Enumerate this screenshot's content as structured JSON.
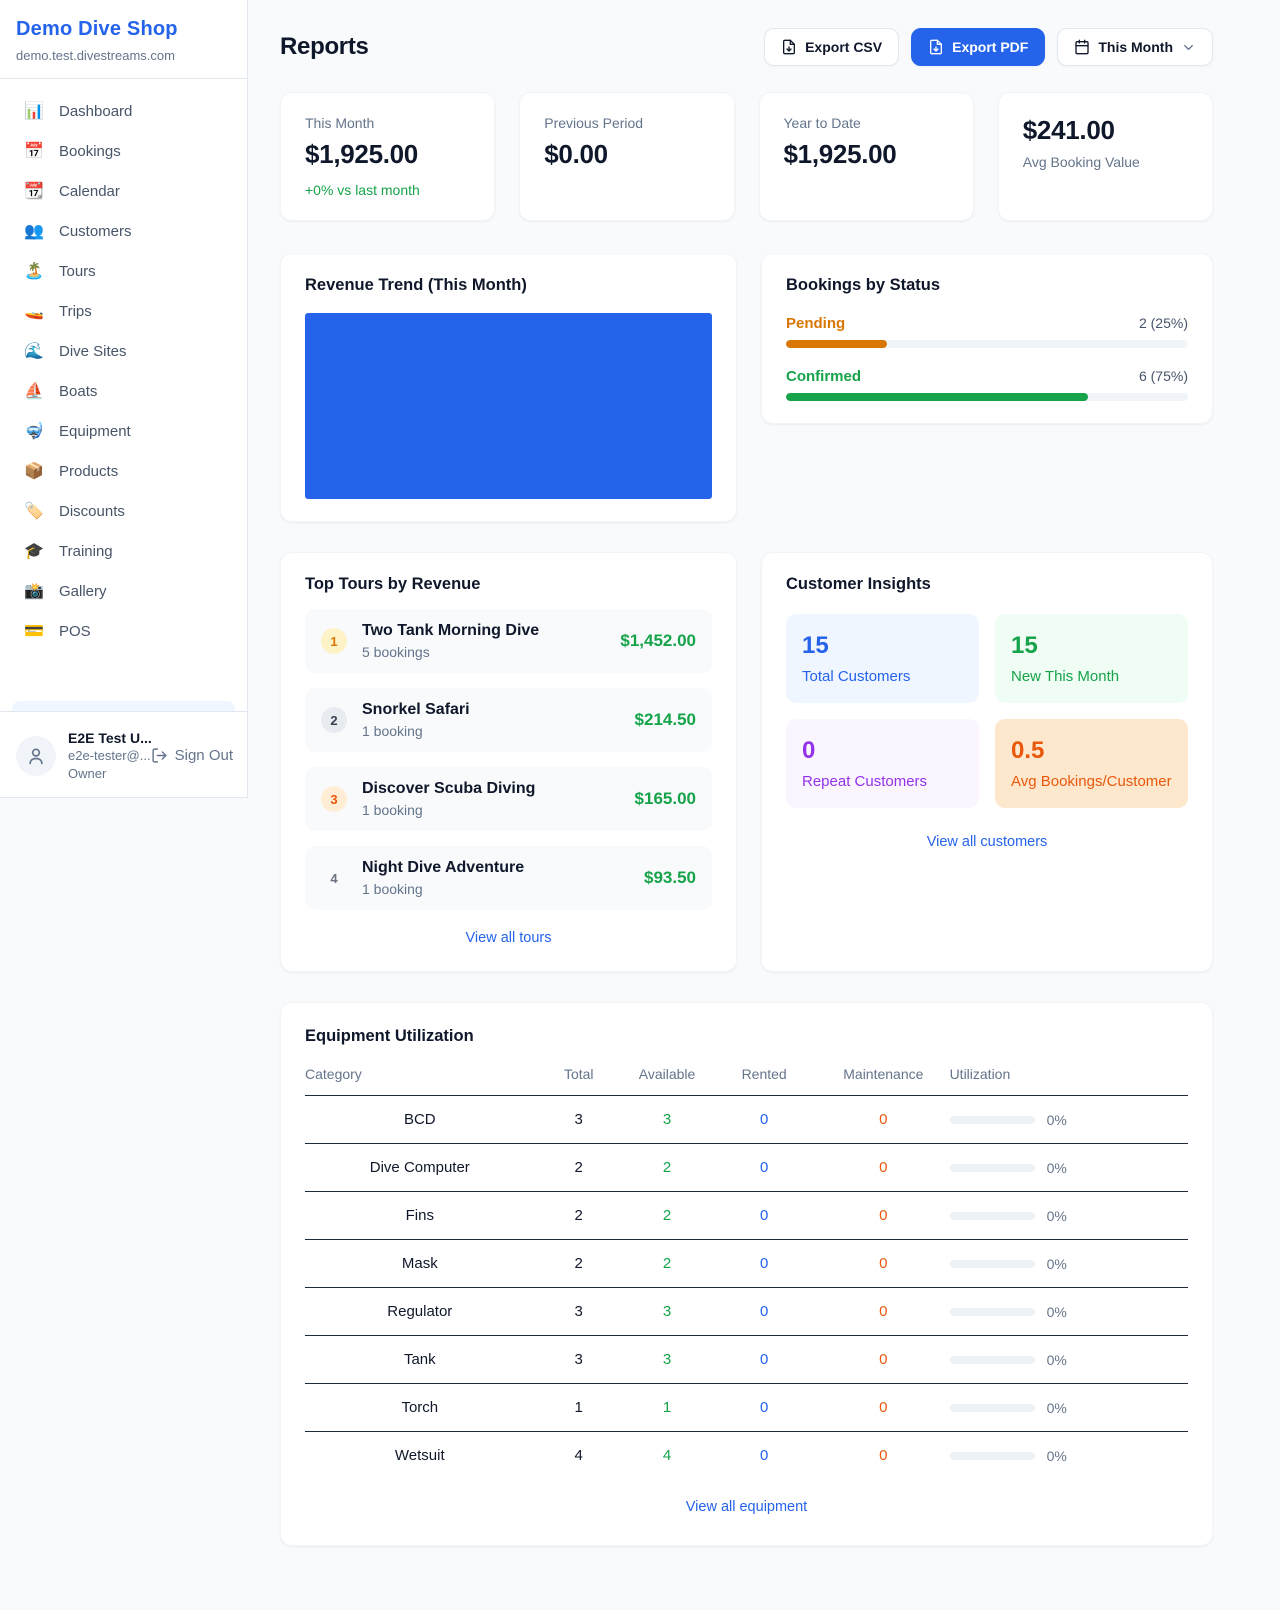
{
  "colors": {
    "accent": "#2563eb",
    "success": "#16a34a",
    "pending_orange": "#d97706",
    "maintenance_orange": "#ea580c",
    "repeat_purple": "#9333ea"
  },
  "sidebar": {
    "title": "Demo Dive Shop",
    "subdomain": "demo.test.divestreams.com",
    "nav": [
      {
        "icon": "📊",
        "label": "Dashboard"
      },
      {
        "icon": "📅",
        "label": "Bookings"
      },
      {
        "icon": "📆",
        "label": "Calendar"
      },
      {
        "icon": "👥",
        "label": "Customers"
      },
      {
        "icon": "🏝️",
        "label": "Tours"
      },
      {
        "icon": "🚤",
        "label": "Trips"
      },
      {
        "icon": "🌊",
        "label": "Dive Sites"
      },
      {
        "icon": "⛵",
        "label": "Boats"
      },
      {
        "icon": "🤿",
        "label": "Equipment"
      },
      {
        "icon": "📦",
        "label": "Products"
      },
      {
        "icon": "🏷️",
        "label": "Discounts"
      },
      {
        "icon": "🎓",
        "label": "Training"
      },
      {
        "icon": "📸",
        "label": "Gallery"
      },
      {
        "icon": "💳",
        "label": "POS"
      }
    ],
    "user": {
      "name": "E2E Test U...",
      "email": "e2e-tester@...",
      "role": "Owner",
      "sign_out": "Sign Out"
    }
  },
  "header": {
    "title": "Reports",
    "export_csv": "Export CSV",
    "export_pdf": "Export PDF",
    "period": "This Month"
  },
  "stats": [
    {
      "label": "This Month",
      "value": "$1,925.00",
      "delta": "+0% vs last month"
    },
    {
      "label": "Previous Period",
      "value": "$0.00"
    },
    {
      "label": "Year to Date",
      "value": "$1,925.00"
    },
    {
      "label": "Avg Booking Value",
      "value": "$241.00"
    }
  ],
  "revenue_trend": {
    "title": "Revenue Trend (This Month)"
  },
  "bookings_by_status": {
    "title": "Bookings by Status",
    "rows": [
      {
        "label": "Pending",
        "count": "2 (25%)",
        "pct": 25
      },
      {
        "label": "Confirmed",
        "count": "6 (75%)",
        "pct": 75
      }
    ]
  },
  "top_tours": {
    "title": "Top Tours by Revenue",
    "link": "View all tours",
    "rows": [
      {
        "rank": "1",
        "name": "Two Tank Morning Dive",
        "bookings": "5 bookings",
        "revenue": "$1,452.00"
      },
      {
        "rank": "2",
        "name": "Snorkel Safari",
        "bookings": "1 booking",
        "revenue": "$214.50"
      },
      {
        "rank": "3",
        "name": "Discover Scuba Diving",
        "bookings": "1 booking",
        "revenue": "$165.00"
      },
      {
        "rank": "4",
        "name": "Night Dive Adventure",
        "bookings": "1 booking",
        "revenue": "$93.50"
      }
    ]
  },
  "customer_insights": {
    "title": "Customer Insights",
    "link": "View all customers",
    "tiles": [
      {
        "number": "15",
        "label": "Total Customers"
      },
      {
        "number": "15",
        "label": "New This Month"
      },
      {
        "number": "0",
        "label": "Repeat Customers"
      },
      {
        "number": "0.5",
        "label": "Avg Bookings/Customer"
      }
    ]
  },
  "equipment": {
    "title": "Equipment Utilization",
    "link": "View all equipment",
    "headers": [
      "Category",
      "Total",
      "Available",
      "Rented",
      "Maintenance",
      "Utilization"
    ],
    "rows": [
      {
        "category": "BCD",
        "total": "3",
        "available": "3",
        "rented": "0",
        "maintenance": "0",
        "utilization": "0%",
        "pct": 0
      },
      {
        "category": "Dive Computer",
        "total": "2",
        "available": "2",
        "rented": "0",
        "maintenance": "0",
        "utilization": "0%",
        "pct": 0
      },
      {
        "category": "Fins",
        "total": "2",
        "available": "2",
        "rented": "0",
        "maintenance": "0",
        "utilization": "0%",
        "pct": 0
      },
      {
        "category": "Mask",
        "total": "2",
        "available": "2",
        "rented": "0",
        "maintenance": "0",
        "utilization": "0%",
        "pct": 0
      },
      {
        "category": "Regulator",
        "total": "3",
        "available": "3",
        "rented": "0",
        "maintenance": "0",
        "utilization": "0%",
        "pct": 0
      },
      {
        "category": "Tank",
        "total": "3",
        "available": "3",
        "rented": "0",
        "maintenance": "0",
        "utilization": "0%",
        "pct": 0
      },
      {
        "category": "Torch",
        "total": "1",
        "available": "1",
        "rented": "0",
        "maintenance": "0",
        "utilization": "0%",
        "pct": 0
      },
      {
        "category": "Wetsuit",
        "total": "4",
        "available": "4",
        "rented": "0",
        "maintenance": "0",
        "utilization": "0%",
        "pct": 0
      }
    ]
  }
}
